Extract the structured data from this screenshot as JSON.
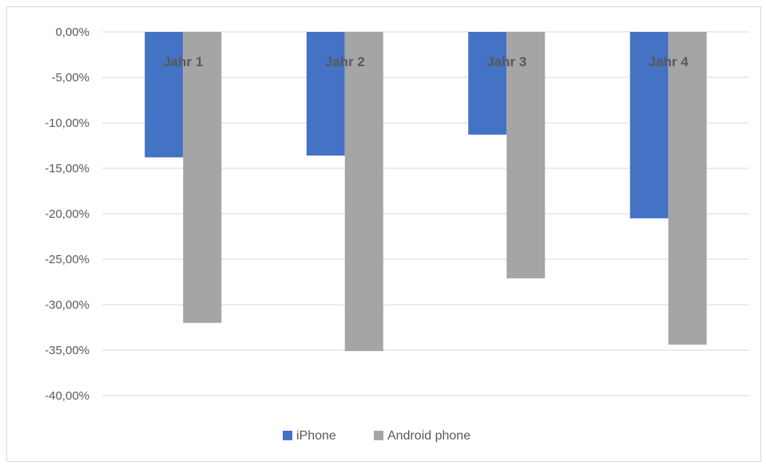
{
  "chart_data": {
    "type": "bar",
    "title": "",
    "xlabel": "",
    "ylabel": "",
    "categories": [
      "Jahr 1",
      "Jahr 2",
      "Jahr 3",
      "Jahr 4"
    ],
    "series": [
      {
        "name": "iPhone",
        "color": "#4472c4",
        "values": [
          -13.8,
          -13.6,
          -11.3,
          -20.5
        ]
      },
      {
        "name": "Android phone",
        "color": "#a5a5a5",
        "values": [
          -32.0,
          -35.1,
          -27.1,
          -34.4
        ]
      }
    ],
    "ylim": [
      -40,
      0
    ],
    "yticks": [
      0,
      -5,
      -10,
      -15,
      -20,
      -25,
      -30,
      -35,
      -40
    ],
    "ytick_labels": [
      "0,00%",
      "-5,00%",
      "-10,00%",
      "-15,00%",
      "-20,00%",
      "-25,00%",
      "-30,00%",
      "-35,00%",
      "-40,00%"
    ],
    "grid": true,
    "category_labels_position": "top",
    "legend": {
      "position": "bottom"
    }
  }
}
